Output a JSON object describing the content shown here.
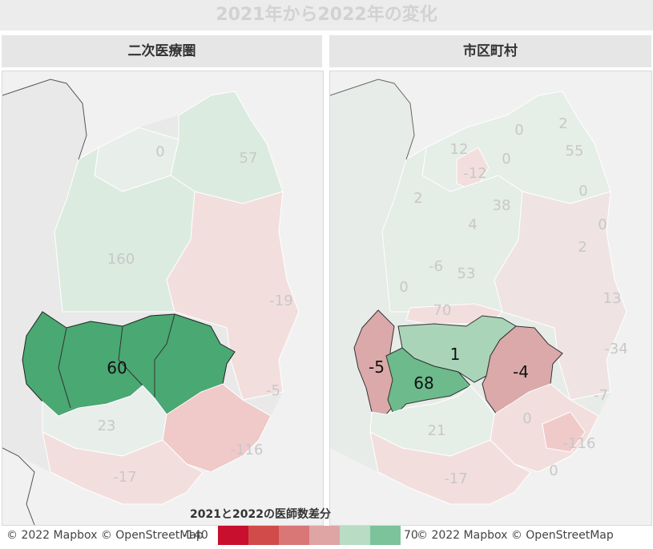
{
  "title": "2021年から2022年の変化",
  "panels": {
    "left": {
      "header": "二次医療圏"
    },
    "right": {
      "header": "市区町村"
    }
  },
  "left_labels": [
    {
      "id": "l1",
      "value": "0"
    },
    {
      "id": "l2",
      "value": "57"
    },
    {
      "id": "l3",
      "value": "160"
    },
    {
      "id": "l4",
      "value": "-19"
    },
    {
      "id": "l5",
      "value": "60"
    },
    {
      "id": "l6",
      "value": "-5"
    },
    {
      "id": "l7",
      "value": "23"
    },
    {
      "id": "l8",
      "value": "-116"
    },
    {
      "id": "l9",
      "value": "-17"
    }
  ],
  "right_labels": [
    {
      "id": "r1",
      "value": "0"
    },
    {
      "id": "r2",
      "value": "2"
    },
    {
      "id": "r3",
      "value": "55"
    },
    {
      "id": "r4",
      "value": "12"
    },
    {
      "id": "r5",
      "value": "0"
    },
    {
      "id": "r6",
      "value": "-12"
    },
    {
      "id": "r7",
      "value": "0"
    },
    {
      "id": "r8",
      "value": "2"
    },
    {
      "id": "r9",
      "value": "38"
    },
    {
      "id": "r10",
      "value": "4"
    },
    {
      "id": "r11",
      "value": "0"
    },
    {
      "id": "r12",
      "value": "2"
    },
    {
      "id": "r13",
      "value": "-6"
    },
    {
      "id": "r14",
      "value": "53"
    },
    {
      "id": "r15",
      "value": "0"
    },
    {
      "id": "r16",
      "value": "13"
    },
    {
      "id": "r17",
      "value": "70"
    },
    {
      "id": "r18",
      "value": "-5"
    },
    {
      "id": "r19",
      "value": "1"
    },
    {
      "id": "r20",
      "value": "68"
    },
    {
      "id": "r21",
      "value": "-4"
    },
    {
      "id": "r22",
      "value": "-34"
    },
    {
      "id": "r23",
      "value": "-7"
    },
    {
      "id": "r24",
      "value": "0"
    },
    {
      "id": "r25",
      "value": "21"
    },
    {
      "id": "r26",
      "value": "-116"
    },
    {
      "id": "r27",
      "value": "-17"
    },
    {
      "id": "r28",
      "value": "0"
    }
  ],
  "legend": {
    "title": "2021と2022の医師数差分",
    "min": "-140",
    "max": "70",
    "colors": [
      "#c8102e",
      "#d14b4b",
      "#d97777",
      "#dfa5a5",
      "#b9dcc5",
      "#7cc39c",
      "#3fa36b"
    ]
  },
  "attribution": {
    "left": "© 2022 Mapbox © OpenStreetMap",
    "right": "© 2022 Mapbox © OpenStreetMap"
  },
  "colors": {
    "positive_strong": "#4aa872",
    "positive_faint": "#dcebe0",
    "negative_mid": "#dba9a9",
    "negative_faint": "#f3dede",
    "neutral": "#e9efea",
    "background_land": "#eeeeee"
  }
}
